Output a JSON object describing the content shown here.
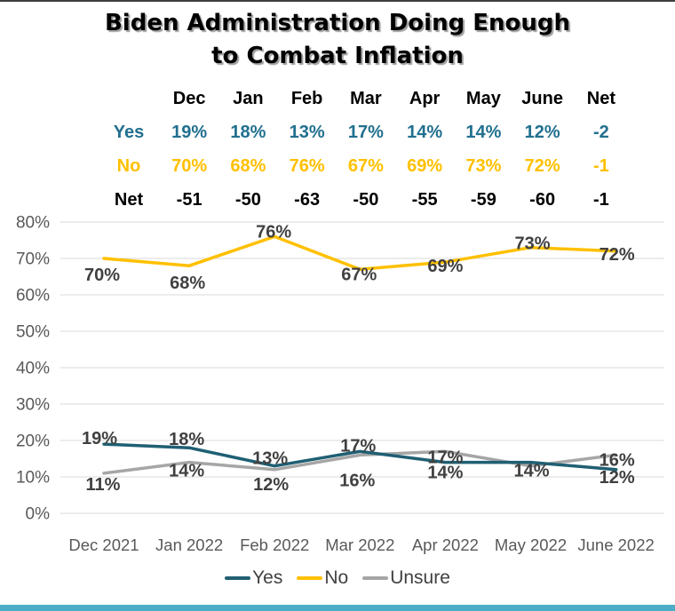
{
  "title": {
    "line1": "Biden Administration Doing Enough",
    "line2": "to Combat Inflation"
  },
  "table": {
    "header": [
      "",
      "Dec",
      "Jan",
      "Feb",
      "Mar",
      "Apr",
      "May",
      "June",
      "Net"
    ],
    "rows": [
      {
        "label": "Yes",
        "color": "#21708f",
        "values": [
          "19%",
          "18%",
          "13%",
          "17%",
          "14%",
          "14%",
          "12%",
          "-2"
        ]
      },
      {
        "label": "No",
        "color": "#FFC000",
        "values": [
          "70%",
          "68%",
          "76%",
          "67%",
          "69%",
          "73%",
          "72%",
          "-1"
        ]
      },
      {
        "label": "Net",
        "color": "#000000",
        "values": [
          "-51",
          "-50",
          "-63",
          "-50",
          "-55",
          "-59",
          "-60",
          "-1"
        ]
      }
    ]
  },
  "chart_data": {
    "type": "line",
    "title": "Biden Administration Doing Enough to Combat Inflation",
    "categories": [
      "Dec 2021",
      "Jan 2022",
      "Feb 2022",
      "Mar 2022",
      "Apr 2022",
      "May 2022",
      "June 2022"
    ],
    "series": [
      {
        "name": "Yes",
        "color": "#1F5F73",
        "values": [
          19,
          18,
          13,
          17,
          14,
          14,
          12
        ],
        "labels": [
          "19%",
          "18%",
          "13%",
          "17%",
          "14%",
          "14%",
          "12%"
        ]
      },
      {
        "name": "No",
        "color": "#FFC000",
        "values": [
          70,
          68,
          76,
          67,
          69,
          73,
          72
        ],
        "labels": [
          "70%",
          "68%",
          "76%",
          "67%",
          "69%",
          "73%",
          "72%"
        ]
      },
      {
        "name": "Unsure",
        "color": "#A6A6A6",
        "values": [
          11,
          14,
          12,
          16,
          17,
          13,
          16
        ],
        "labels": [
          "11%",
          "14%",
          "12%",
          "16%",
          "17%",
          "",
          "16%"
        ]
      }
    ],
    "ylim": [
      0,
      80
    ],
    "y_ticks": [
      "0%",
      "10%",
      "20%",
      "30%",
      "40%",
      "50%",
      "60%",
      "70%",
      "80%"
    ],
    "grid": true,
    "legend_position": "bottom"
  },
  "colors": {
    "accent_bar": "#4BACC6",
    "top_border": "#3f3f3f",
    "gridline": "#D9D9D9",
    "axis_text": "#595959",
    "data_label": "#404040"
  }
}
